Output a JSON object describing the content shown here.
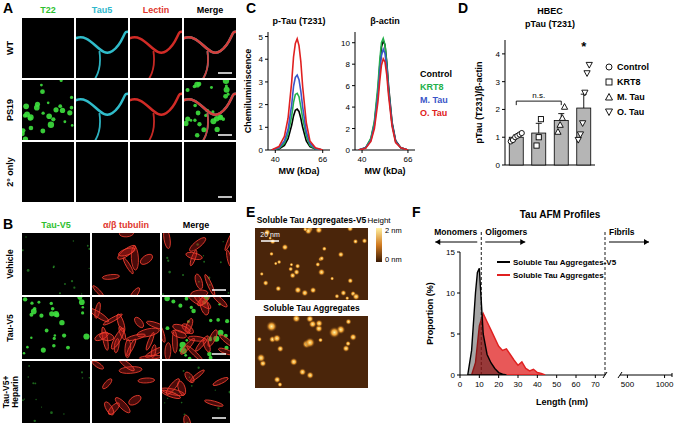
{
  "panel_labels": [
    "A",
    "B",
    "C",
    "D",
    "E",
    "F"
  ],
  "panels": {
    "A": {
      "columns": [
        {
          "text": "T22",
          "color": "#2fbf2f"
        },
        {
          "text": "Tau5",
          "color": "#2fb8cc"
        },
        {
          "text": "Lectin",
          "color": "#e0362c"
        },
        {
          "text": "Merge",
          "color": "#000000"
        }
      ],
      "rows": [
        "WT",
        "PS19",
        "2° only"
      ]
    },
    "B": {
      "columns": [
        {
          "text": "Tau-V5",
          "color": "#2fbf2f"
        },
        {
          "text": "α/β tubulin",
          "color": "#e0362c"
        },
        {
          "text": "Merge",
          "color": "#000000"
        }
      ],
      "rows": [
        [
          "Vehicle"
        ],
        [
          "Tau-V5"
        ],
        [
          "Tau-V5+",
          "Heparin"
        ]
      ]
    },
    "E": {
      "images": [
        "Soluble Tau Aggregates-V5",
        "Soluble Tau Aggregates"
      ],
      "scale_bar": "20 nm",
      "colorbar": {
        "title": "Height",
        "max_label": "2 nm",
        "min_label": "0 nm"
      }
    }
  },
  "chart_data": [
    {
      "type": "line",
      "title": "p-Tau (T231)",
      "x_label": "MW (kDa)",
      "y_label": "Chemiluminiscence",
      "x": [
        38,
        42,
        45,
        47,
        49,
        50,
        51,
        52,
        53,
        54,
        55,
        57,
        59,
        62,
        66
      ],
      "xlim": [
        36,
        70
      ],
      "xticks": [
        40,
        66
      ],
      "ylim": [
        0,
        5.2
      ],
      "yticks": [
        0,
        1,
        2,
        3,
        4,
        5
      ],
      "series": [
        {
          "name": "Control",
          "color": "#000000",
          "values": [
            0,
            0.05,
            0.2,
            0.5,
            1.1,
            1.5,
            1.75,
            1.8,
            1.7,
            1.4,
            1.0,
            0.4,
            0.15,
            0.05,
            0
          ]
        },
        {
          "name": "KRT8",
          "color": "#22b04a",
          "values": [
            0,
            0.07,
            0.3,
            0.7,
            1.5,
            2.1,
            2.45,
            2.5,
            2.35,
            1.9,
            1.4,
            0.6,
            0.2,
            0.05,
            0
          ]
        },
        {
          "name": "M. Tau",
          "color": "#3a55c8",
          "values": [
            0,
            0.1,
            0.4,
            0.9,
            2.0,
            2.8,
            3.2,
            3.3,
            3.1,
            2.6,
            1.9,
            0.8,
            0.3,
            0.07,
            0
          ]
        },
        {
          "name": "O. Tau",
          "color": "#e02020",
          "values": [
            0,
            0.15,
            0.6,
            1.4,
            3.0,
            4.1,
            4.7,
            4.9,
            4.6,
            3.9,
            2.8,
            1.2,
            0.4,
            0.1,
            0
          ]
        }
      ]
    },
    {
      "type": "line",
      "title": "β-actin",
      "x_label": "MW (kDa)",
      "legend": "right",
      "x": [
        38,
        42,
        45,
        47,
        49,
        50,
        51,
        52,
        53,
        54,
        55,
        57,
        59,
        62,
        66
      ],
      "xlim": [
        36,
        70
      ],
      "xticks": [
        40,
        66
      ],
      "ylim": [
        0,
        11
      ],
      "yticks": [
        0,
        2,
        4,
        6,
        8,
        10
      ],
      "series": [
        {
          "name": "Control",
          "color": "#000000",
          "values": [
            0,
            0.2,
            1.0,
            2.5,
            5.5,
            7.8,
            9.6,
            10.2,
            9.8,
            8.2,
            6.0,
            2.6,
            0.9,
            0.2,
            0
          ]
        },
        {
          "name": "KRT8",
          "color": "#22b04a",
          "values": [
            0,
            0.2,
            1.1,
            2.7,
            6.0,
            8.3,
            10.0,
            10.4,
            9.8,
            8.0,
            5.7,
            2.4,
            0.8,
            0.2,
            0
          ]
        },
        {
          "name": "M. Tau",
          "color": "#3a55c8",
          "values": [
            0,
            0.2,
            0.9,
            2.3,
            5.1,
            7.2,
            8.8,
            9.4,
            9.0,
            7.6,
            5.5,
            2.4,
            0.8,
            0.2,
            0
          ]
        },
        {
          "name": "O. Tau",
          "color": "#e02020",
          "values": [
            0,
            0.15,
            0.8,
            2.0,
            4.5,
            6.4,
            7.9,
            8.5,
            8.2,
            7.0,
            5.1,
            2.2,
            0.7,
            0.2,
            0
          ]
        }
      ]
    },
    {
      "type": "bar",
      "title": "HBEC",
      "subtitle": "pTau (T231)",
      "y_label": "pTau (T231)/β-actin",
      "ylim": [
        0,
        4.5
      ],
      "yticks": [
        0,
        1,
        2,
        3,
        4
      ],
      "color": "#b5b5b5",
      "legend": "right",
      "tick_labels": "y",
      "series": [
        {
          "name": "Control",
          "marker": "circle",
          "mean": 1.0,
          "error": 0.08,
          "points": [
            0.85,
            0.9,
            1.0,
            1.05,
            1.1,
            1.15
          ]
        },
        {
          "name": "KRT8",
          "marker": "square",
          "mean": 1.15,
          "error": 0.35,
          "points": [
            0.7,
            1.0,
            1.65
          ]
        },
        {
          "name": "M. Tau",
          "marker": "triangle",
          "mean": 1.6,
          "error": 0.25,
          "points": [
            1.2,
            1.45,
            1.7,
            2.1
          ]
        },
        {
          "name": "O. Tau",
          "marker": "triangle-down",
          "mean": 2.05,
          "error": 0.5,
          "points": [
            0.9,
            1.1,
            1.5,
            2.6,
            3.3,
            3.6
          ]
        }
      ],
      "annotations": [
        {
          "text": "n.s.",
          "from": 0,
          "to": 2,
          "y": 2.3
        },
        {
          "text": "*",
          "at": 3,
          "y": 4.25
        }
      ]
    },
    {
      "type": "area",
      "title": "Tau AFM Profiles",
      "x_label": "Length (nm)",
      "y_label": "Proportion (%)",
      "xlim": [
        0,
        1100
      ],
      "x_segments": [
        [
          0,
          75
        ],
        [
          400,
          1100
        ]
      ],
      "xticks": [
        0,
        10,
        20,
        30,
        40,
        50,
        60,
        70,
        500,
        1000
      ],
      "ylim": [
        0,
        15
      ],
      "yticks": [
        0,
        5,
        10,
        15
      ],
      "legend": "top",
      "boundaries": [
        11,
        75
      ],
      "regions": [
        {
          "text": "Monomers",
          "range": [
            0,
            11
          ],
          "direction": "left"
        },
        {
          "text": "Oligomers",
          "range": [
            11,
            75
          ],
          "direction": "right"
        },
        {
          "text": "Fibrils",
          "range": [
            75,
            1100
          ],
          "direction": "right"
        }
      ],
      "series": [
        {
          "name": "Soluble Tau Aggregates-V5",
          "color": "#000000",
          "x": [
            4,
            6,
            8,
            9,
            10,
            11,
            12,
            14,
            16,
            18,
            20,
            22,
            24
          ],
          "values": [
            0,
            3,
            10,
            12.5,
            13,
            9,
            5,
            2.5,
            1.5,
            0.8,
            0.3,
            0.1,
            0
          ]
        },
        {
          "name": "Soluble Tau Aggregates",
          "color": "#e02020",
          "x": [
            6,
            8,
            10,
            12,
            14,
            16,
            18,
            20,
            22,
            24,
            26,
            28,
            30,
            32,
            34,
            36,
            38,
            40,
            42,
            44
          ],
          "values": [
            0,
            1.5,
            6,
            7.5,
            6.5,
            5.5,
            4.5,
            3.5,
            3,
            3.2,
            2.5,
            1.8,
            1.2,
            1.6,
            0.8,
            0.5,
            0.7,
            0.3,
            0.2,
            0
          ]
        }
      ]
    }
  ]
}
